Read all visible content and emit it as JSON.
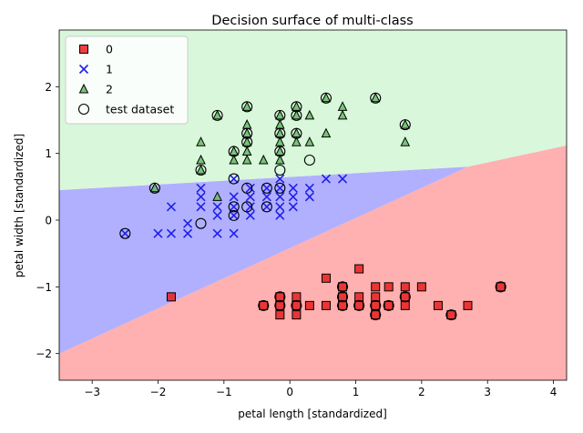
{
  "chart_data": {
    "type": "scatter",
    "title": "Decision surface of multi-class",
    "xlabel": "petal length [standardized]",
    "ylabel": "petal width [standardized]",
    "xlim": [
      -3.5,
      4.2
    ],
    "ylim": [
      -2.4,
      2.85
    ],
    "xticks": [
      -3,
      -2,
      -1,
      0,
      1,
      2,
      3,
      4
    ],
    "yticks": [
      -2,
      -1,
      0,
      1,
      2
    ],
    "grid": false,
    "legend_position": "top-left",
    "regions": [
      {
        "class": "0",
        "color": "#ffb0b0",
        "polygon": [
          [
            -3.5,
            -2.4
          ],
          [
            4.2,
            -2.4
          ],
          [
            4.2,
            1.12
          ],
          [
            2.7,
            0.8
          ],
          [
            -3.5,
            -2.0
          ]
        ]
      },
      {
        "class": "1",
        "color": "#b0b0ff",
        "polygon": [
          [
            -3.5,
            -2.0
          ],
          [
            2.7,
            0.8
          ],
          [
            -3.5,
            0.45
          ]
        ]
      },
      {
        "class": "2",
        "color": "#d9f7db",
        "polygon": [
          [
            -3.5,
            0.45
          ],
          [
            2.7,
            0.8
          ],
          [
            4.2,
            1.12
          ],
          [
            4.2,
            2.85
          ],
          [
            -3.5,
            2.85
          ]
        ]
      }
    ],
    "series": [
      {
        "name": "0",
        "marker": "square",
        "color": "#e82020",
        "edge": "#000000",
        "points": [
          [
            -1.8,
            -1.15
          ],
          [
            -0.4,
            -1.28
          ],
          [
            -0.15,
            -1.15
          ],
          [
            -0.15,
            -1.28
          ],
          [
            -0.15,
            -1.42
          ],
          [
            0.1,
            -1.15
          ],
          [
            0.1,
            -1.28
          ],
          [
            0.1,
            -1.42
          ],
          [
            0.3,
            -1.28
          ],
          [
            0.55,
            -0.87
          ],
          [
            0.55,
            -1.28
          ],
          [
            0.8,
            -1.0
          ],
          [
            0.8,
            -1.15
          ],
          [
            0.8,
            -1.28
          ],
          [
            1.05,
            -0.73
          ],
          [
            1.05,
            -1.15
          ],
          [
            1.05,
            -1.28
          ],
          [
            1.3,
            -1.0
          ],
          [
            1.3,
            -1.15
          ],
          [
            1.3,
            -1.28
          ],
          [
            1.3,
            -1.42
          ],
          [
            1.5,
            -1.0
          ],
          [
            1.5,
            -1.28
          ],
          [
            1.75,
            -1.0
          ],
          [
            1.75,
            -1.15
          ],
          [
            1.75,
            -1.28
          ],
          [
            2.0,
            -1.0
          ],
          [
            2.25,
            -1.28
          ],
          [
            2.45,
            -1.42
          ],
          [
            2.7,
            -1.28
          ],
          [
            3.2,
            -1.0
          ]
        ]
      },
      {
        "name": "1",
        "marker": "x",
        "color": "#2020e8",
        "points": [
          [
            -2.5,
            -0.2
          ],
          [
            -2.0,
            -0.2
          ],
          [
            -1.8,
            -0.2
          ],
          [
            -1.8,
            0.2
          ],
          [
            -1.55,
            -0.05
          ],
          [
            -1.55,
            -0.2
          ],
          [
            -1.35,
            0.2
          ],
          [
            -1.35,
            0.35
          ],
          [
            -1.35,
            0.48
          ],
          [
            -1.1,
            0.07
          ],
          [
            -1.1,
            -0.2
          ],
          [
            -1.1,
            0.2
          ],
          [
            -0.85,
            -0.2
          ],
          [
            -0.85,
            0.07
          ],
          [
            -0.85,
            0.2
          ],
          [
            -0.85,
            0.35
          ],
          [
            -0.85,
            0.62
          ],
          [
            -0.6,
            0.07
          ],
          [
            -0.6,
            0.2
          ],
          [
            -0.6,
            0.35
          ],
          [
            -0.6,
            0.48
          ],
          [
            -0.35,
            0.2
          ],
          [
            -0.35,
            0.35
          ],
          [
            -0.35,
            0.48
          ],
          [
            -0.15,
            0.07
          ],
          [
            -0.15,
            0.2
          ],
          [
            -0.15,
            0.35
          ],
          [
            -0.15,
            0.48
          ],
          [
            -0.15,
            0.62
          ],
          [
            0.05,
            0.2
          ],
          [
            0.05,
            0.35
          ],
          [
            0.05,
            0.48
          ],
          [
            0.3,
            0.35
          ],
          [
            0.3,
            0.48
          ],
          [
            0.55,
            0.62
          ],
          [
            0.8,
            0.62
          ]
        ]
      },
      {
        "name": "2",
        "marker": "triangle",
        "color": "#6abf6a",
        "edge": "#000000",
        "points": [
          [
            -2.05,
            0.48
          ],
          [
            -1.35,
            0.75
          ],
          [
            -1.35,
            0.9
          ],
          [
            -1.35,
            1.17
          ],
          [
            -1.1,
            1.57
          ],
          [
            -1.1,
            0.35
          ],
          [
            -0.85,
            0.9
          ],
          [
            -0.85,
            1.03
          ],
          [
            -0.65,
            0.9
          ],
          [
            -0.65,
            1.03
          ],
          [
            -0.65,
            1.17
          ],
          [
            -0.65,
            1.3
          ],
          [
            -0.65,
            1.43
          ],
          [
            -0.65,
            1.7
          ],
          [
            -0.4,
            0.9
          ],
          [
            -0.15,
            0.9
          ],
          [
            -0.15,
            1.03
          ],
          [
            -0.15,
            1.17
          ],
          [
            -0.15,
            1.3
          ],
          [
            -0.15,
            1.43
          ],
          [
            -0.15,
            1.57
          ],
          [
            0.1,
            1.17
          ],
          [
            0.1,
            1.3
          ],
          [
            0.1,
            1.57
          ],
          [
            0.1,
            1.7
          ],
          [
            0.3,
            1.17
          ],
          [
            0.3,
            1.57
          ],
          [
            0.55,
            1.3
          ],
          [
            0.55,
            1.83
          ],
          [
            0.8,
            1.57
          ],
          [
            0.8,
            1.7
          ],
          [
            1.3,
            1.83
          ],
          [
            1.75,
            1.17
          ],
          [
            1.75,
            1.43
          ]
        ]
      },
      {
        "name": "test dataset",
        "marker": "circle-open",
        "color": "none",
        "edge": "#000000",
        "points": [
          [
            -2.5,
            -0.2
          ],
          [
            -2.05,
            0.48
          ],
          [
            -1.35,
            0.75
          ],
          [
            -1.35,
            -0.05
          ],
          [
            -1.1,
            1.57
          ],
          [
            -0.85,
            1.03
          ],
          [
            -0.85,
            0.62
          ],
          [
            -0.85,
            0.2
          ],
          [
            -0.85,
            0.07
          ],
          [
            -0.65,
            1.7
          ],
          [
            -0.65,
            1.3
          ],
          [
            -0.65,
            1.17
          ],
          [
            -0.65,
            0.48
          ],
          [
            -0.65,
            0.2
          ],
          [
            -0.35,
            0.48
          ],
          [
            -0.35,
            0.2
          ],
          [
            -0.15,
            1.57
          ],
          [
            -0.15,
            1.3
          ],
          [
            -0.15,
            1.03
          ],
          [
            -0.15,
            0.75
          ],
          [
            -0.15,
            0.48
          ],
          [
            0.1,
            1.7
          ],
          [
            0.1,
            1.57
          ],
          [
            0.1,
            1.3
          ],
          [
            0.3,
            0.9
          ],
          [
            0.55,
            1.83
          ],
          [
            1.3,
            1.83
          ],
          [
            1.75,
            1.43
          ],
          [
            -0.4,
            -1.28
          ],
          [
            -0.15,
            -1.15
          ],
          [
            -0.15,
            -1.28
          ],
          [
            0.1,
            -1.28
          ],
          [
            0.8,
            -1.0
          ],
          [
            0.8,
            -1.15
          ],
          [
            0.8,
            -1.28
          ],
          [
            1.05,
            -1.28
          ],
          [
            1.3,
            -1.28
          ],
          [
            1.3,
            -1.42
          ],
          [
            1.5,
            -1.28
          ],
          [
            1.75,
            -1.15
          ],
          [
            2.45,
            -1.42
          ],
          [
            3.2,
            -1.0
          ]
        ]
      }
    ]
  }
}
